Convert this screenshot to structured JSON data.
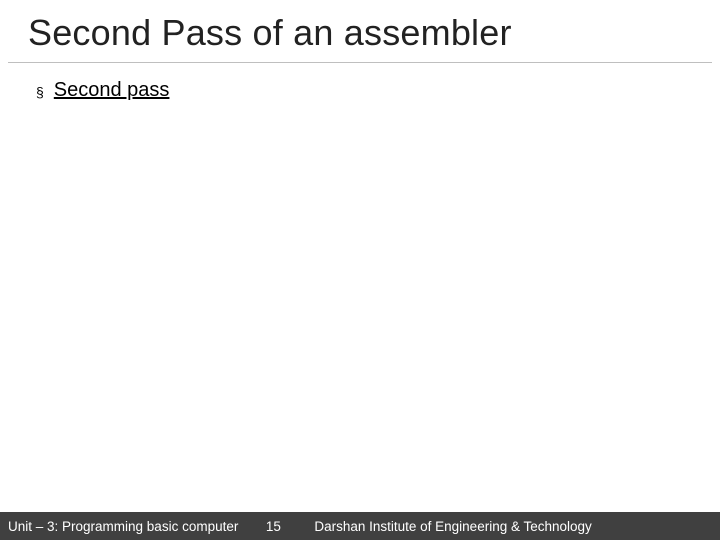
{
  "slide": {
    "title": "Second Pass of an assembler",
    "title_color": "#222222",
    "title_fontsize": 36,
    "title_underline_color": "#bfbfbf",
    "bullets": [
      {
        "marker": "§",
        "text": "Second pass",
        "underline": true,
        "fontsize": 20,
        "color": "#000000"
      }
    ],
    "background_color": "#ffffff"
  },
  "footer": {
    "left": "Unit – 3: Programming basic computer",
    "page": "15",
    "right": "Darshan Institute of Engineering & Technology",
    "background_color": "#404040",
    "text_color": "#ffffff",
    "fontsize": 13.5
  }
}
